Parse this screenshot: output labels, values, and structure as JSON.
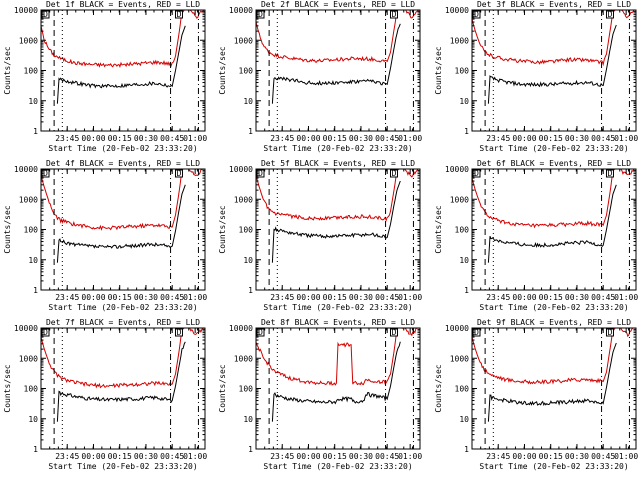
{
  "colors": {
    "events": "#000000",
    "lld": "#d40000",
    "axis": "#000000",
    "background": "#ffffff"
  },
  "common": {
    "xlabel": "Start Time (20-Feb-02 23:33:20)",
    "ylabel": "Counts/sec",
    "yticks": [
      "1",
      "10",
      "100",
      "1000",
      "10000"
    ],
    "xticks_a": [
      "23:45",
      "00:00",
      "00:15",
      "00:30",
      "00:45",
      "01:00"
    ],
    "xticks_b": [
      "23:45",
      "00:00",
      "00:15",
      "00:30",
      "00:45",
      "01:00"
    ],
    "xticks_c": [
      "23:45",
      "00:00",
      "00:15",
      "00:30",
      "00:45",
      "01:00"
    ],
    "box_label": "D"
  },
  "chart_data": [
    {
      "type": "line",
      "title": "Det 1f BLACK = Events, RED = LLD",
      "yscale": "log",
      "ylim": [
        1,
        10000
      ],
      "xlim": [
        0,
        100
      ],
      "xtick_labels": [
        "23:45",
        "00:00",
        "00:15",
        "00:30",
        "00:45",
        "01:00"
      ],
      "series": [
        {
          "color": "#d40000",
          "x": [
            0,
            2,
            5,
            8,
            12,
            20,
            30,
            40,
            50,
            60,
            70,
            75,
            80,
            82,
            84,
            86,
            88,
            90,
            92,
            95,
            100
          ],
          "y": [
            3000,
            1000,
            500,
            320,
            250,
            180,
            160,
            150,
            155,
            170,
            190,
            180,
            160,
            300,
            1500,
            9000,
            12000,
            11000,
            8000,
            6000,
            12000
          ]
        },
        {
          "color": "#000000",
          "x": [
            10,
            11,
            12,
            20,
            30,
            40,
            50,
            60,
            70,
            75,
            80,
            82,
            84,
            86,
            88
          ],
          "y": [
            8,
            55,
            50,
            40,
            32,
            30,
            32,
            35,
            38,
            34,
            30,
            100,
            400,
            1500,
            3000
          ]
        }
      ]
    },
    {
      "type": "line",
      "title": "Det 2f BLACK = Events, RED = LLD",
      "yscale": "log",
      "ylim": [
        1,
        10000
      ],
      "xlim": [
        0,
        100
      ],
      "xtick_labels": [
        "23:45",
        "00:00",
        "00:15",
        "00:30",
        "00:45",
        "01:00"
      ],
      "series": [
        {
          "color": "#d40000",
          "x": [
            0,
            2,
            5,
            8,
            12,
            20,
            30,
            40,
            50,
            60,
            70,
            75,
            80,
            82,
            84,
            86,
            88,
            90,
            92,
            95,
            100
          ],
          "y": [
            4000,
            1500,
            600,
            400,
            320,
            260,
            220,
            210,
            230,
            250,
            240,
            220,
            200,
            400,
            2000,
            9000,
            12000,
            11000,
            8000,
            6000,
            12000
          ]
        },
        {
          "color": "#000000",
          "x": [
            10,
            11,
            12,
            20,
            30,
            40,
            50,
            60,
            70,
            75,
            80,
            82,
            84,
            86,
            88
          ],
          "y": [
            8,
            60,
            55,
            50,
            40,
            38,
            40,
            42,
            45,
            40,
            35,
            120,
            500,
            1800,
            3500
          ]
        }
      ]
    },
    {
      "type": "line",
      "title": "Det 3f BLACK = Events, RED = LLD",
      "yscale": "log",
      "ylim": [
        1,
        10000
      ],
      "xlim": [
        0,
        100
      ],
      "xtick_labels": [
        "23:45",
        "00:00",
        "00:15",
        "00:30",
        "00:45",
        "01:00"
      ],
      "series": [
        {
          "color": "#d40000",
          "x": [
            0,
            2,
            5,
            8,
            12,
            20,
            30,
            40,
            50,
            60,
            70,
            75,
            80,
            82,
            84,
            86,
            88,
            90,
            92,
            95,
            100
          ],
          "y": [
            5000,
            2000,
            700,
            400,
            300,
            240,
            200,
            190,
            200,
            230,
            220,
            200,
            180,
            350,
            1800,
            9000,
            12000,
            11000,
            8000,
            6000,
            12000
          ]
        },
        {
          "color": "#000000",
          "x": [
            10,
            11,
            12,
            20,
            30,
            40,
            50,
            60,
            70,
            75,
            80,
            82,
            84,
            86,
            88
          ],
          "y": [
            8,
            60,
            55,
            42,
            35,
            34,
            35,
            38,
            40,
            36,
            32,
            110,
            450,
            1600,
            3200
          ]
        }
      ]
    },
    {
      "type": "line",
      "title": "Det 4f BLACK = Events, RED = LLD",
      "yscale": "log",
      "ylim": [
        1,
        10000
      ],
      "xlim": [
        0,
        100
      ],
      "xtick_labels": [
        "23:45",
        "00:00",
        "00:15",
        "00:30",
        "00:45",
        "01:00"
      ],
      "series": [
        {
          "color": "#d40000",
          "x": [
            0,
            2,
            5,
            8,
            12,
            20,
            30,
            40,
            50,
            60,
            70,
            75,
            80,
            82,
            84,
            86,
            88,
            90,
            92,
            95,
            100
          ],
          "y": [
            6000,
            2500,
            800,
            300,
            200,
            150,
            120,
            110,
            120,
            130,
            140,
            130,
            120,
            300,
            1500,
            9000,
            12000,
            11000,
            8000,
            6000,
            12000
          ]
        },
        {
          "color": "#000000",
          "x": [
            10,
            11,
            12,
            20,
            30,
            40,
            50,
            60,
            70,
            75,
            80,
            82,
            84,
            86,
            88
          ],
          "y": [
            8,
            45,
            40,
            32,
            28,
            26,
            28,
            30,
            32,
            30,
            28,
            90,
            400,
            1500,
            3000
          ]
        }
      ]
    },
    {
      "type": "line",
      "title": "Det 5f BLACK = Events, RED = LLD",
      "yscale": "log",
      "ylim": [
        1,
        10000
      ],
      "xlim": [
        0,
        100
      ],
      "xtick_labels": [
        "23:45",
        "00:00",
        "00:15",
        "00:30",
        "00:45",
        "01:00"
      ],
      "series": [
        {
          "color": "#d40000",
          "x": [
            0,
            2,
            5,
            8,
            12,
            20,
            30,
            40,
            50,
            60,
            70,
            75,
            80,
            82,
            84,
            86,
            88,
            90,
            92,
            95,
            100
          ],
          "y": [
            6000,
            2500,
            800,
            450,
            320,
            280,
            240,
            230,
            250,
            270,
            260,
            240,
            220,
            400,
            1800,
            9000,
            12000,
            11000,
            8000,
            6000,
            12000
          ]
        },
        {
          "color": "#000000",
          "x": [
            10,
            11,
            12,
            20,
            30,
            40,
            50,
            60,
            70,
            75,
            80,
            82,
            84,
            86,
            88
          ],
          "y": [
            8,
            110,
            100,
            80,
            65,
            60,
            62,
            65,
            70,
            62,
            55,
            150,
            600,
            2000,
            4000
          ]
        }
      ]
    },
    {
      "type": "line",
      "title": "Det 6f BLACK = Events, RED = LLD",
      "yscale": "log",
      "ylim": [
        1,
        10000
      ],
      "xlim": [
        0,
        100
      ],
      "xtick_labels": [
        "23:45",
        "00:00",
        "00:15",
        "00:30",
        "00:45",
        "01:00"
      ],
      "series": [
        {
          "color": "#d40000",
          "x": [
            0,
            2,
            5,
            8,
            12,
            20,
            30,
            40,
            50,
            60,
            70,
            75,
            80,
            82,
            84,
            86,
            88,
            90,
            92,
            95,
            100
          ],
          "y": [
            5000,
            2000,
            700,
            350,
            230,
            170,
            140,
            130,
            140,
            150,
            160,
            150,
            140,
            300,
            1500,
            9000,
            12000,
            11000,
            8000,
            6000,
            12000
          ]
        },
        {
          "color": "#000000",
          "x": [
            10,
            11,
            12,
            20,
            30,
            40,
            50,
            60,
            70,
            75,
            80,
            82,
            84,
            86,
            88
          ],
          "y": [
            8,
            55,
            50,
            38,
            32,
            30,
            32,
            35,
            38,
            34,
            30,
            100,
            400,
            1500,
            3000
          ]
        }
      ]
    },
    {
      "type": "line",
      "title": "Det 7f BLACK = Events, RED = LLD",
      "yscale": "log",
      "ylim": [
        1,
        10000
      ],
      "xlim": [
        0,
        100
      ],
      "xtick_labels": [
        "23:45",
        "00:00",
        "00:15",
        "00:30",
        "00:45",
        "01:00"
      ],
      "series": [
        {
          "color": "#d40000",
          "x": [
            0,
            2,
            5,
            8,
            12,
            20,
            30,
            40,
            50,
            60,
            70,
            75,
            80,
            82,
            84,
            86,
            88,
            90,
            92,
            95,
            100
          ],
          "y": [
            5000,
            2000,
            700,
            350,
            220,
            160,
            130,
            120,
            130,
            140,
            150,
            145,
            140,
            300,
            1500,
            9000,
            12000,
            11000,
            8000,
            6000,
            12000
          ]
        },
        {
          "color": "#000000",
          "x": [
            10,
            11,
            12,
            20,
            30,
            40,
            50,
            60,
            70,
            75,
            80,
            82,
            84,
            86,
            88
          ],
          "y": [
            8,
            80,
            70,
            55,
            45,
            42,
            44,
            46,
            50,
            45,
            40,
            120,
            500,
            1800,
            3500
          ]
        }
      ]
    },
    {
      "type": "line",
      "title": "Det 8f BLACK = Events, RED = LLD",
      "yscale": "log",
      "ylim": [
        1,
        10000
      ],
      "xlim": [
        0,
        100
      ],
      "xtick_labels": [
        "23:45",
        "00:00",
        "00:15",
        "00:30",
        "00:45",
        "01:00"
      ],
      "series": [
        {
          "color": "#d40000",
          "x": [
            0,
            2,
            5,
            8,
            12,
            20,
            30,
            40,
            49,
            50,
            58,
            59,
            60,
            66,
            67,
            70,
            75,
            80,
            82,
            84,
            86,
            88,
            90,
            92,
            95,
            100
          ],
          "y": [
            3000,
            2000,
            900,
            600,
            350,
            220,
            170,
            150,
            150,
            2800,
            2800,
            150,
            150,
            150,
            200,
            180,
            170,
            160,
            300,
            1500,
            9000,
            12000,
            11000,
            8000,
            6000,
            12000
          ]
        },
        {
          "color": "#000000",
          "x": [
            10,
            11,
            12,
            20,
            30,
            40,
            49,
            50,
            58,
            59,
            60,
            66,
            67,
            70,
            75,
            80,
            82,
            84,
            86,
            88
          ],
          "y": [
            8,
            70,
            60,
            45,
            38,
            35,
            36,
            45,
            45,
            38,
            36,
            40,
            70,
            60,
            55,
            45,
            120,
            500,
            1800,
            3500
          ]
        }
      ]
    },
    {
      "type": "line",
      "title": "Det 9f BLACK = Events, RED = LLD",
      "yscale": "log",
      "ylim": [
        1,
        10000
      ],
      "xlim": [
        0,
        100
      ],
      "xtick_labels": [
        "23:45",
        "00:00",
        "00:15",
        "00:30",
        "00:45",
        "01:00"
      ],
      "series": [
        {
          "color": "#d40000",
          "x": [
            0,
            2,
            5,
            8,
            12,
            20,
            30,
            40,
            50,
            60,
            70,
            75,
            80,
            82,
            84,
            86,
            88,
            90,
            92,
            95,
            100
          ],
          "y": [
            5000,
            2000,
            700,
            400,
            280,
            200,
            170,
            160,
            170,
            190,
            200,
            185,
            170,
            350,
            1800,
            9000,
            12000,
            11000,
            8000,
            6000,
            12000
          ]
        },
        {
          "color": "#000000",
          "x": [
            10,
            11,
            12,
            20,
            30,
            40,
            50,
            60,
            70,
            75,
            80,
            82,
            84,
            86,
            88
          ],
          "y": [
            8,
            55,
            50,
            40,
            34,
            32,
            34,
            36,
            40,
            36,
            32,
            110,
            450,
            1600,
            3200
          ]
        }
      ]
    }
  ]
}
